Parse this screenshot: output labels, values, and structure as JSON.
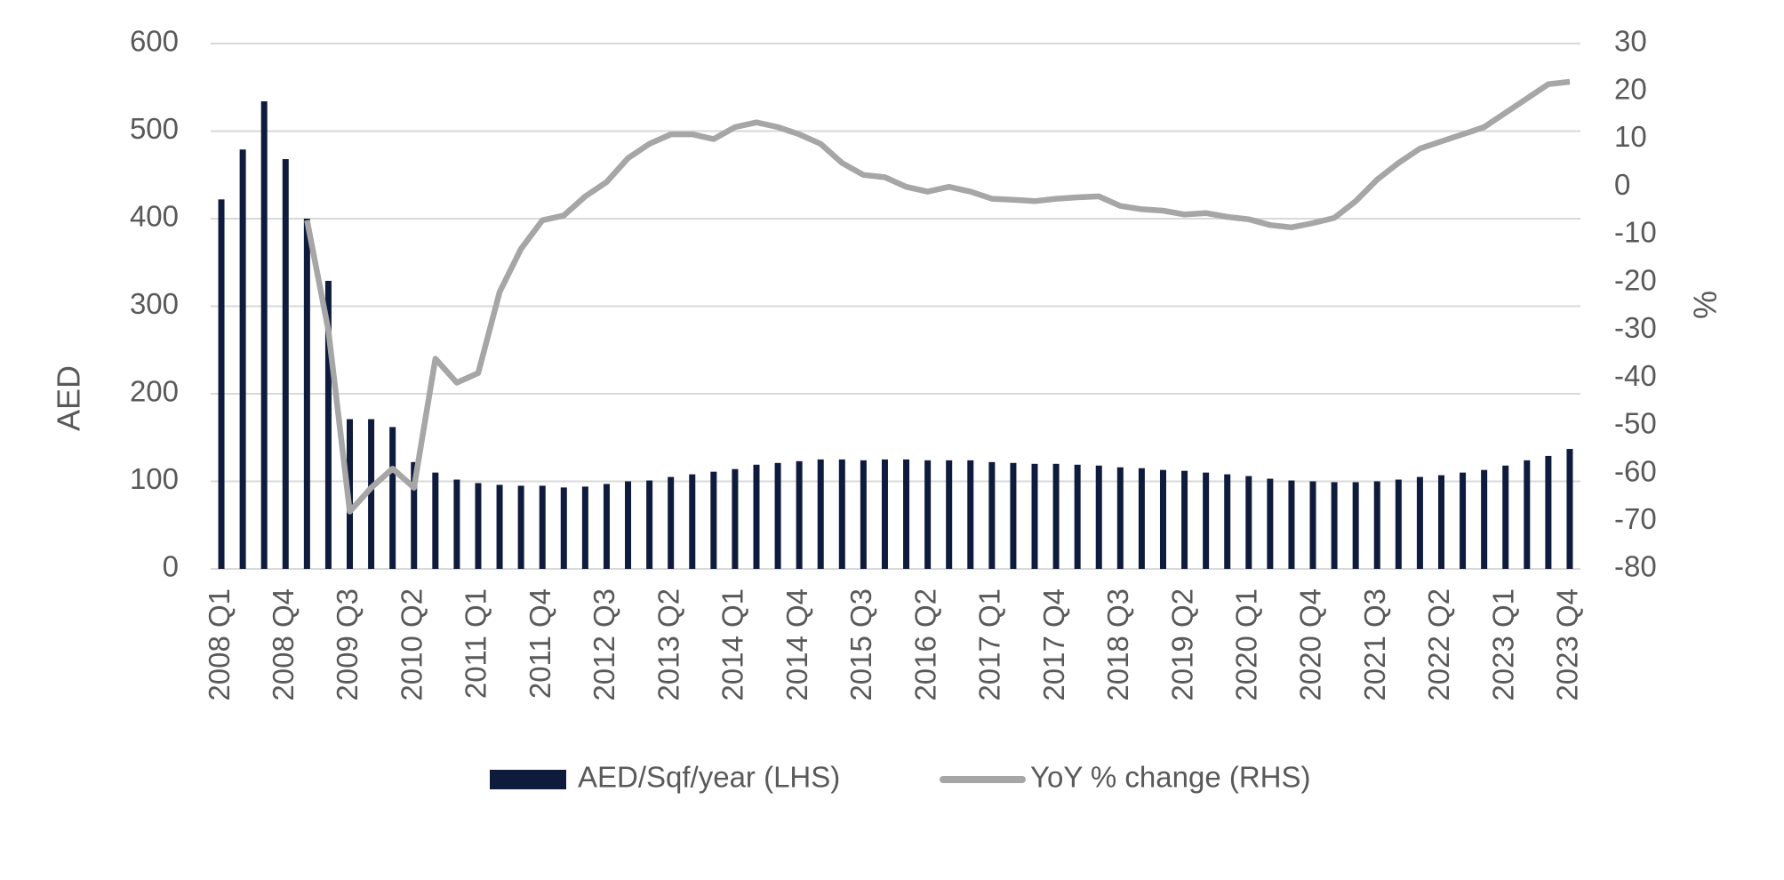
{
  "chart_data": {
    "type": "bar-line",
    "categories": [
      "2008 Q1",
      null,
      null,
      "2008 Q4",
      null,
      null,
      "2009 Q3",
      null,
      null,
      "2010 Q2",
      null,
      null,
      "2011 Q1",
      null,
      null,
      "2011 Q4",
      null,
      null,
      "2012 Q3",
      null,
      null,
      "2013 Q2",
      null,
      null,
      "2014 Q1",
      null,
      null,
      "2014 Q4",
      null,
      null,
      "2015 Q3",
      null,
      null,
      "2016 Q2",
      null,
      null,
      "2017 Q1",
      null,
      null,
      "2017 Q4",
      null,
      null,
      "2018 Q3",
      null,
      null,
      "2019 Q2",
      null,
      null,
      "2020 Q1",
      null,
      null,
      "2020 Q4",
      null,
      null,
      "2021 Q3",
      null,
      null,
      "2022 Q2",
      null,
      null,
      "2023 Q1",
      null,
      null,
      "2023 Q4"
    ],
    "series": [
      {
        "name": "AED/Sqf/year (LHS)",
        "type": "bar",
        "color": "#0f1b3d",
        "values": [
          422,
          479,
          534,
          468,
          400,
          329,
          171,
          171,
          162,
          122,
          110,
          102,
          98,
          96,
          95,
          95,
          93,
          94,
          97,
          100,
          101,
          105,
          108,
          111,
          114,
          119,
          121,
          123,
          125,
          125,
          124,
          125,
          125,
          124,
          124,
          124,
          122,
          121,
          120,
          120,
          119,
          118,
          116,
          115,
          113,
          112,
          110,
          108,
          106,
          103,
          101,
          100,
          99,
          99,
          100,
          102,
          105,
          107,
          110,
          113,
          118,
          124,
          129,
          137
        ]
      },
      {
        "name": "YoY % change (RHS)",
        "type": "line",
        "axis": "y2",
        "color": "#a6a6a6",
        "values": [
          null,
          null,
          null,
          null,
          -7,
          -30,
          -68,
          -63,
          -59,
          -63,
          -36,
          -41,
          -39,
          -22,
          -13,
          -7,
          -6,
          -2,
          1,
          6,
          9,
          11,
          11,
          10,
          12.5,
          13.5,
          12.5,
          11,
          9,
          5,
          2.5,
          2,
          0,
          -1,
          0,
          -1,
          -2.5,
          -2.7,
          -3,
          -2.5,
          -2.2,
          -2,
          -4,
          -4.7,
          -5,
          -5.8,
          -5.5,
          -6.3,
          -6.8,
          -8,
          -8.5,
          -7.6,
          -6.5,
          -3,
          1.5,
          5,
          8,
          9.5,
          11,
          12.5,
          15.5,
          18.5,
          21.5,
          22
        ]
      }
    ],
    "ylabel": "AED",
    "y2label": "%",
    "ylim": [
      0,
      600
    ],
    "yticks": [
      0,
      100,
      200,
      300,
      400,
      500,
      600
    ],
    "y2lim": [
      -80,
      30
    ],
    "y2ticks": [
      -80,
      -70,
      -60,
      -50,
      -40,
      -30,
      -20,
      -10,
      0,
      10,
      20,
      30
    ],
    "grid": true,
    "legend": "bottom"
  }
}
